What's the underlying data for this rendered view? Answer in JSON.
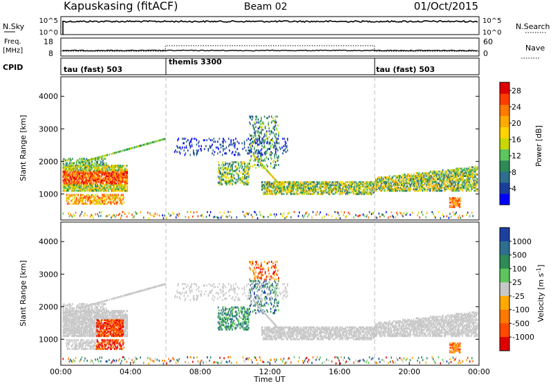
{
  "header": {
    "station": "Kapuskasing (fitACF)",
    "beam": "Beam 02",
    "date": "01/Oct/2015"
  },
  "status_panels": {
    "nsky_label": "N.Sky",
    "nsky_ticks": [
      "10^5",
      "10^0"
    ],
    "nsearch_label": "N.Search",
    "freq_label_line1": "Freq.",
    "freq_label_line2": "[MHz]",
    "freq_ticks": [
      "18",
      "8"
    ],
    "nave_label": "Nave",
    "nave_ticks": [
      "60",
      "0"
    ],
    "cpid_label": "CPID",
    "cpid_modes": [
      {
        "label": "tau (fast) 503",
        "start_hour": 0,
        "end_hour": 6
      },
      {
        "label": "themis 3300",
        "start_hour": 6,
        "end_hour": 18
      },
      {
        "label": "tau (fast) 503",
        "start_hour": 18,
        "end_hour": 24
      }
    ]
  },
  "chart_data": [
    {
      "type": "heatmap",
      "panel": "power",
      "ylabel": "Slant Range [km]",
      "xlim": [
        0,
        24
      ],
      "ylim": [
        200,
        4600
      ],
      "yticks": [
        1000,
        2000,
        3000,
        4000
      ],
      "colorbar_label": "Power [dB]",
      "colorbar_ticks": [
        4,
        8,
        12,
        16,
        20,
        24,
        28
      ],
      "colorbar_range": [
        0,
        30
      ],
      "colors": [
        "#0000ff",
        "#1a3f9a",
        "#2e6e8e",
        "#2e8b57",
        "#5cc65c",
        "#c8d800",
        "#ffd400",
        "#ffaa00",
        "#ff7a00",
        "#ff3c00",
        "#e00000"
      ]
    },
    {
      "type": "heatmap",
      "panel": "velocity",
      "ylabel": "Slant Range [km]",
      "xlabel": "Time UT",
      "xticks": [
        "00:00",
        "04:00",
        "08:00",
        "12:00",
        "16:00",
        "20:00",
        "00:00"
      ],
      "xlim": [
        0,
        24
      ],
      "ylim": [
        200,
        4600
      ],
      "yticks": [
        1000,
        2000,
        3000,
        4000
      ],
      "colorbar_label": "Velocity [m s^-1]",
      "colorbar_ticks": [
        "1000",
        "500",
        "100",
        "25",
        "-25",
        "-100",
        "-500",
        "-1000"
      ],
      "colors": [
        "#1c3fa0",
        "#2e6e8e",
        "#2e8b57",
        "#5cc65c",
        "#c8c8c8",
        "#ffaa00",
        "#ff7a00",
        "#ff4a00",
        "#e00000"
      ]
    }
  ]
}
